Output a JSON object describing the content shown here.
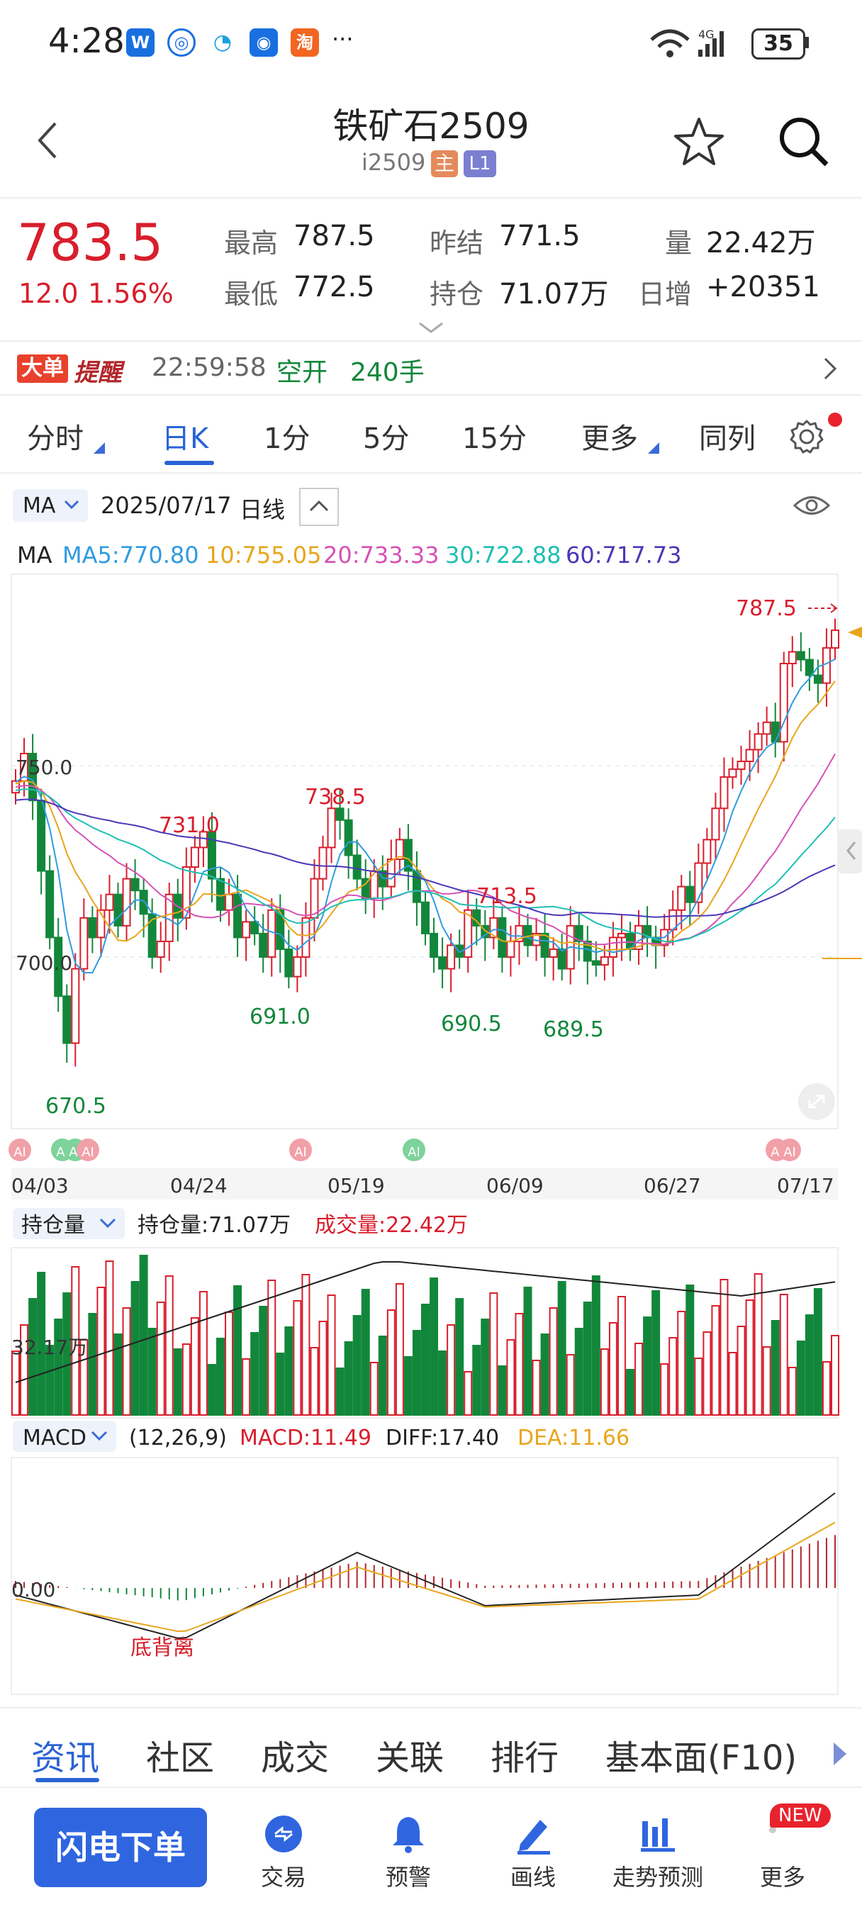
{
  "status_bar": {
    "time": "4:28",
    "battery": "35",
    "more": "···",
    "network": "4G"
  },
  "header": {
    "title": "铁矿石2509",
    "code": "i2509",
    "badge_main": "主",
    "badge_level": "L1"
  },
  "quote": {
    "price": "783.5",
    "change": "12.0",
    "change_pct": "1.56%",
    "high_label": "最高",
    "high": "787.5",
    "low_label": "最低",
    "low": "772.5",
    "prev_label": "昨结",
    "prev": "771.5",
    "oi_label": "持仓",
    "oi": "71.07万",
    "vol_label": "量",
    "vol": "22.42万",
    "daily_inc_label": "日增",
    "daily_inc": "+20351"
  },
  "alert": {
    "badge1": "大单",
    "badge2": "提醒",
    "time": "22:59:58",
    "action": "空开",
    "qty": "240手"
  },
  "period_tabs": [
    "分时",
    "日K",
    "1分",
    "5分",
    "15分",
    "更多",
    "同列"
  ],
  "chart_header": {
    "indicator": "MA",
    "date": "2025/07/17",
    "period": "日线"
  },
  "ma_legend": {
    "name": "MA",
    "ma5": "MA5:770.80",
    "ma10": "10:755.05",
    "ma20": "20:733.33",
    "ma30": "30:722.88",
    "ma60": "60:717.73",
    "colors": {
      "ma5": "#2f9be0",
      "ma10": "#e8a51c",
      "ma20": "#d651b5",
      "ma30": "#1fbfb3",
      "ma60": "#4b37b8"
    }
  },
  "price_chart": {
    "axis_750": "750.0",
    "axis_700": "700.0",
    "labels": {
      "p731": "731.0",
      "p738": "738.5",
      "p713": "713.5",
      "p670": "670.5",
      "p691": "691.0",
      "p690": "690.5",
      "p689": "689.5",
      "p787": "787.5"
    },
    "ai_tag": "AI"
  },
  "dates": [
    "04/03",
    "04/24",
    "05/19",
    "06/09",
    "06/27",
    "07/17"
  ],
  "volume_panel": {
    "selector": "持仓量",
    "oi_text": "持仓量:71.07万",
    "vol_text": "成交量:22.42万",
    "axis": "32.17万"
  },
  "macd_panel": {
    "selector": "MACD",
    "params": "(12,26,9)",
    "macd": "MACD:11.49",
    "diff": "DIFF:17.40",
    "dea": "DEA:11.66",
    "axis": "0.00",
    "divergence": "底背离"
  },
  "bottom_tabs": [
    "资讯",
    "社区",
    "成交",
    "关联",
    "排行",
    "基本面(F10)"
  ],
  "bottom_nav": {
    "order_button": "闪电下单",
    "trade": "交易",
    "alert": "预警",
    "draw": "画线",
    "forecast": "走势预测",
    "more": "更多",
    "new_badge": "NEW"
  }
}
